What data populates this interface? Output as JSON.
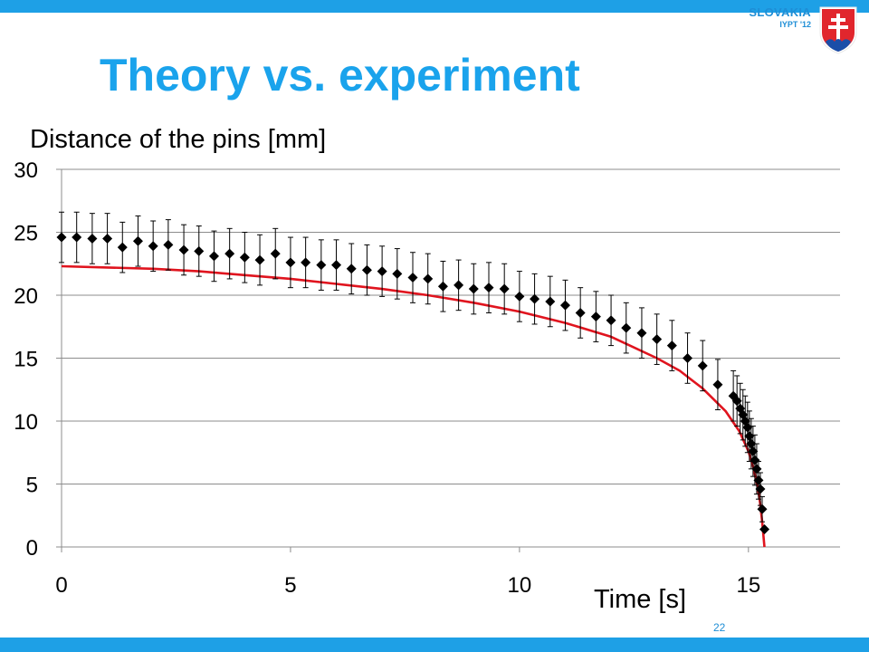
{
  "slide": {
    "title": "Theory vs. experiment",
    "brand_country": "SLOVAKIA",
    "brand_event": "IYPT '12",
    "page_number": "22",
    "logo": "slovak-coat-of-arms-icon"
  },
  "colors": {
    "accent": "#1ea0e6",
    "title": "#1aa3ec",
    "theory_line": "#e0141e",
    "points": "#000000"
  },
  "chart_data": {
    "type": "scatter",
    "title": "",
    "ylabel": "Distance of the pins [mm]",
    "xlabel": "Time [s]",
    "xlim": [
      0,
      17
    ],
    "ylim": [
      0,
      30
    ],
    "xticks": [
      0,
      5,
      10,
      15
    ],
    "yticks": [
      0,
      5,
      10,
      15,
      20,
      25,
      30
    ],
    "grid": "horizontal",
    "legend": "none",
    "series": [
      {
        "type": "scatter",
        "marker": "diamond",
        "error_bars": true,
        "x": [
          0.0,
          0.33,
          0.67,
          1.0,
          1.33,
          1.67,
          2.0,
          2.33,
          2.67,
          3.0,
          3.33,
          3.67,
          4.0,
          4.33,
          4.67,
          5.0,
          5.33,
          5.67,
          6.0,
          6.33,
          6.67,
          7.0,
          7.33,
          7.67,
          8.0,
          8.33,
          8.67,
          9.0,
          9.33,
          9.67,
          10.0,
          10.33,
          10.67,
          11.0,
          11.33,
          11.67,
          12.0,
          12.33,
          12.67,
          13.0,
          13.33,
          13.67,
          14.0,
          14.33,
          14.67,
          14.75,
          14.82,
          14.88,
          14.93,
          14.98,
          15.02,
          15.06,
          15.1,
          15.14,
          15.18,
          15.22,
          15.26,
          15.3,
          15.35
        ],
        "y": [
          24.6,
          24.6,
          24.5,
          24.5,
          23.8,
          24.3,
          23.9,
          24.0,
          23.6,
          23.5,
          23.1,
          23.3,
          23.0,
          22.8,
          23.3,
          22.6,
          22.6,
          22.4,
          22.4,
          22.1,
          22.0,
          21.9,
          21.7,
          21.4,
          21.3,
          20.7,
          20.8,
          20.5,
          20.6,
          20.5,
          19.9,
          19.7,
          19.5,
          19.2,
          18.6,
          18.3,
          18.0,
          17.4,
          17.0,
          16.5,
          16.0,
          15.0,
          14.4,
          12.9,
          12.0,
          11.6,
          11.0,
          10.5,
          10.0,
          9.5,
          8.8,
          8.2,
          7.6,
          6.9,
          6.2,
          5.3,
          4.6,
          3.0,
          1.4
        ],
        "errors": [
          2.0,
          2.0,
          2.0,
          2.0,
          2.0,
          2.0,
          2.0,
          2.0,
          2.0,
          2.0,
          2.0,
          2.0,
          2.0,
          2.0,
          2.0,
          2.0,
          2.0,
          2.0,
          2.0,
          2.0,
          2.0,
          2.0,
          2.0,
          2.0,
          2.0,
          2.0,
          2.0,
          2.0,
          2.0,
          2.0,
          2.0,
          2.0,
          2.0,
          2.0,
          2.0,
          2.0,
          2.0,
          2.0,
          2.0,
          2.0,
          2.0,
          2.0,
          2.0,
          2.0,
          2.0,
          2.0,
          2.0,
          2.0,
          2.0,
          2.0,
          2.0,
          2.0,
          2.0,
          2.0,
          2.0,
          1.5,
          1.3,
          1.0,
          0.0
        ]
      },
      {
        "type": "line",
        "x": [
          0,
          1,
          2,
          3,
          4,
          5,
          6,
          7,
          8,
          9,
          10,
          11,
          12,
          13,
          13.5,
          14,
          14.5,
          14.8,
          15.0,
          15.1,
          15.2,
          15.25,
          15.3,
          15.35
        ],
        "y": [
          22.3,
          22.2,
          22.1,
          21.9,
          21.6,
          21.3,
          20.9,
          20.5,
          20.0,
          19.4,
          18.7,
          17.8,
          16.7,
          15.0,
          14.0,
          12.6,
          10.8,
          9.2,
          7.6,
          6.4,
          4.8,
          3.6,
          2.0,
          0.0
        ]
      }
    ]
  }
}
